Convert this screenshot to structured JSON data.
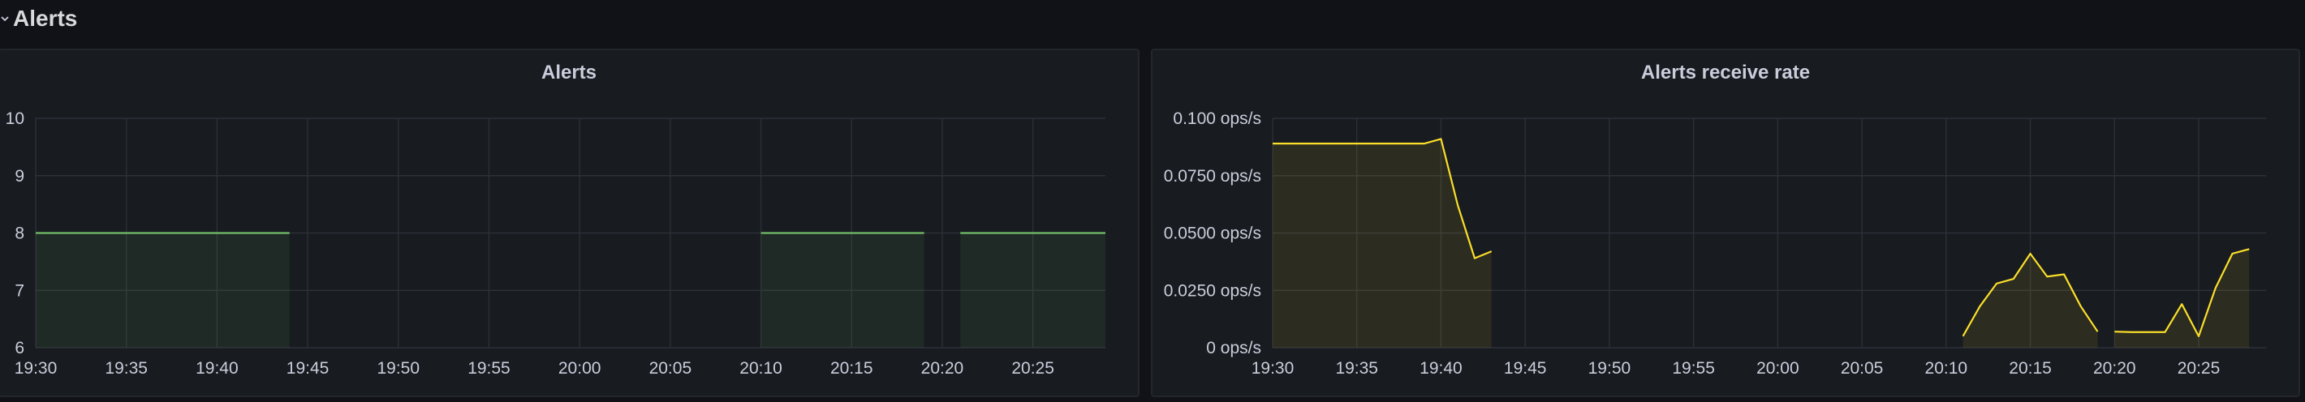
{
  "row": {
    "title": "Alerts"
  },
  "panels": [
    {
      "title": "Alerts",
      "chart_data": {
        "type": "area",
        "title": "Alerts",
        "x_ticks": [
          "19:30",
          "19:35",
          "19:40",
          "19:45",
          "19:50",
          "19:55",
          "20:00",
          "20:05",
          "20:10",
          "20:15",
          "20:20",
          "20:25"
        ],
        "y_ticks": [
          "6",
          "7",
          "8",
          "9",
          "10"
        ],
        "ylim": [
          6,
          10
        ],
        "xlim": [
          "19:30",
          "20:29"
        ],
        "grid": true,
        "series": [
          {
            "color": "#73bf69",
            "segments": [
              [
                [
                  "19:30",
                  8
                ],
                [
                  "19:44",
                  8
                ]
              ],
              [
                [
                  "20:10",
                  8
                ],
                [
                  "20:19",
                  8
                ]
              ],
              [
                [
                  "20:21",
                  8
                ],
                [
                  "20:29",
                  8
                ]
              ]
            ]
          }
        ]
      }
    },
    {
      "title": "Alerts receive rate",
      "chart_data": {
        "type": "area",
        "title": "Alerts receive rate",
        "x_ticks": [
          "19:30",
          "19:35",
          "19:40",
          "19:45",
          "19:50",
          "19:55",
          "20:00",
          "20:05",
          "20:10",
          "20:15",
          "20:20",
          "20:25"
        ],
        "y_ticks": [
          "0 ops/s",
          "0.0250 ops/s",
          "0.0500 ops/s",
          "0.0750 ops/s",
          "0.100 ops/s"
        ],
        "ylim": [
          0,
          0.1
        ],
        "xlim": [
          "19:30",
          "20:29"
        ],
        "grid": true,
        "series": [
          {
            "color": "#fade2a",
            "segments": [
              [
                [
                  "19:30",
                  0.089
                ],
                [
                  "19:39",
                  0.089
                ],
                [
                  "19:40",
                  0.091
                ],
                [
                  "19:41",
                  0.062
                ],
                [
                  "19:42",
                  0.039
                ],
                [
                  "19:43",
                  0.042
                ]
              ],
              [
                [
                  "20:11",
                  0.005
                ],
                [
                  "20:12",
                  0.018
                ],
                [
                  "20:13",
                  0.028
                ],
                [
                  "20:14",
                  0.03
                ],
                [
                  "20:15",
                  0.041
                ],
                [
                  "20:16",
                  0.031
                ],
                [
                  "20:17",
                  0.032
                ],
                [
                  "20:18",
                  0.018
                ],
                [
                  "20:19",
                  0.007
                ]
              ],
              [
                [
                  "20:20",
                  0.007
                ],
                [
                  "20:21",
                  0.0068
                ],
                [
                  "20:22",
                  0.0068
                ],
                [
                  "20:23",
                  0.0068
                ],
                [
                  "20:24",
                  0.019
                ],
                [
                  "20:25",
                  0.005
                ],
                [
                  "20:26",
                  0.026
                ],
                [
                  "20:27",
                  0.041
                ],
                [
                  "20:28",
                  0.043
                ]
              ]
            ]
          }
        ]
      }
    }
  ]
}
